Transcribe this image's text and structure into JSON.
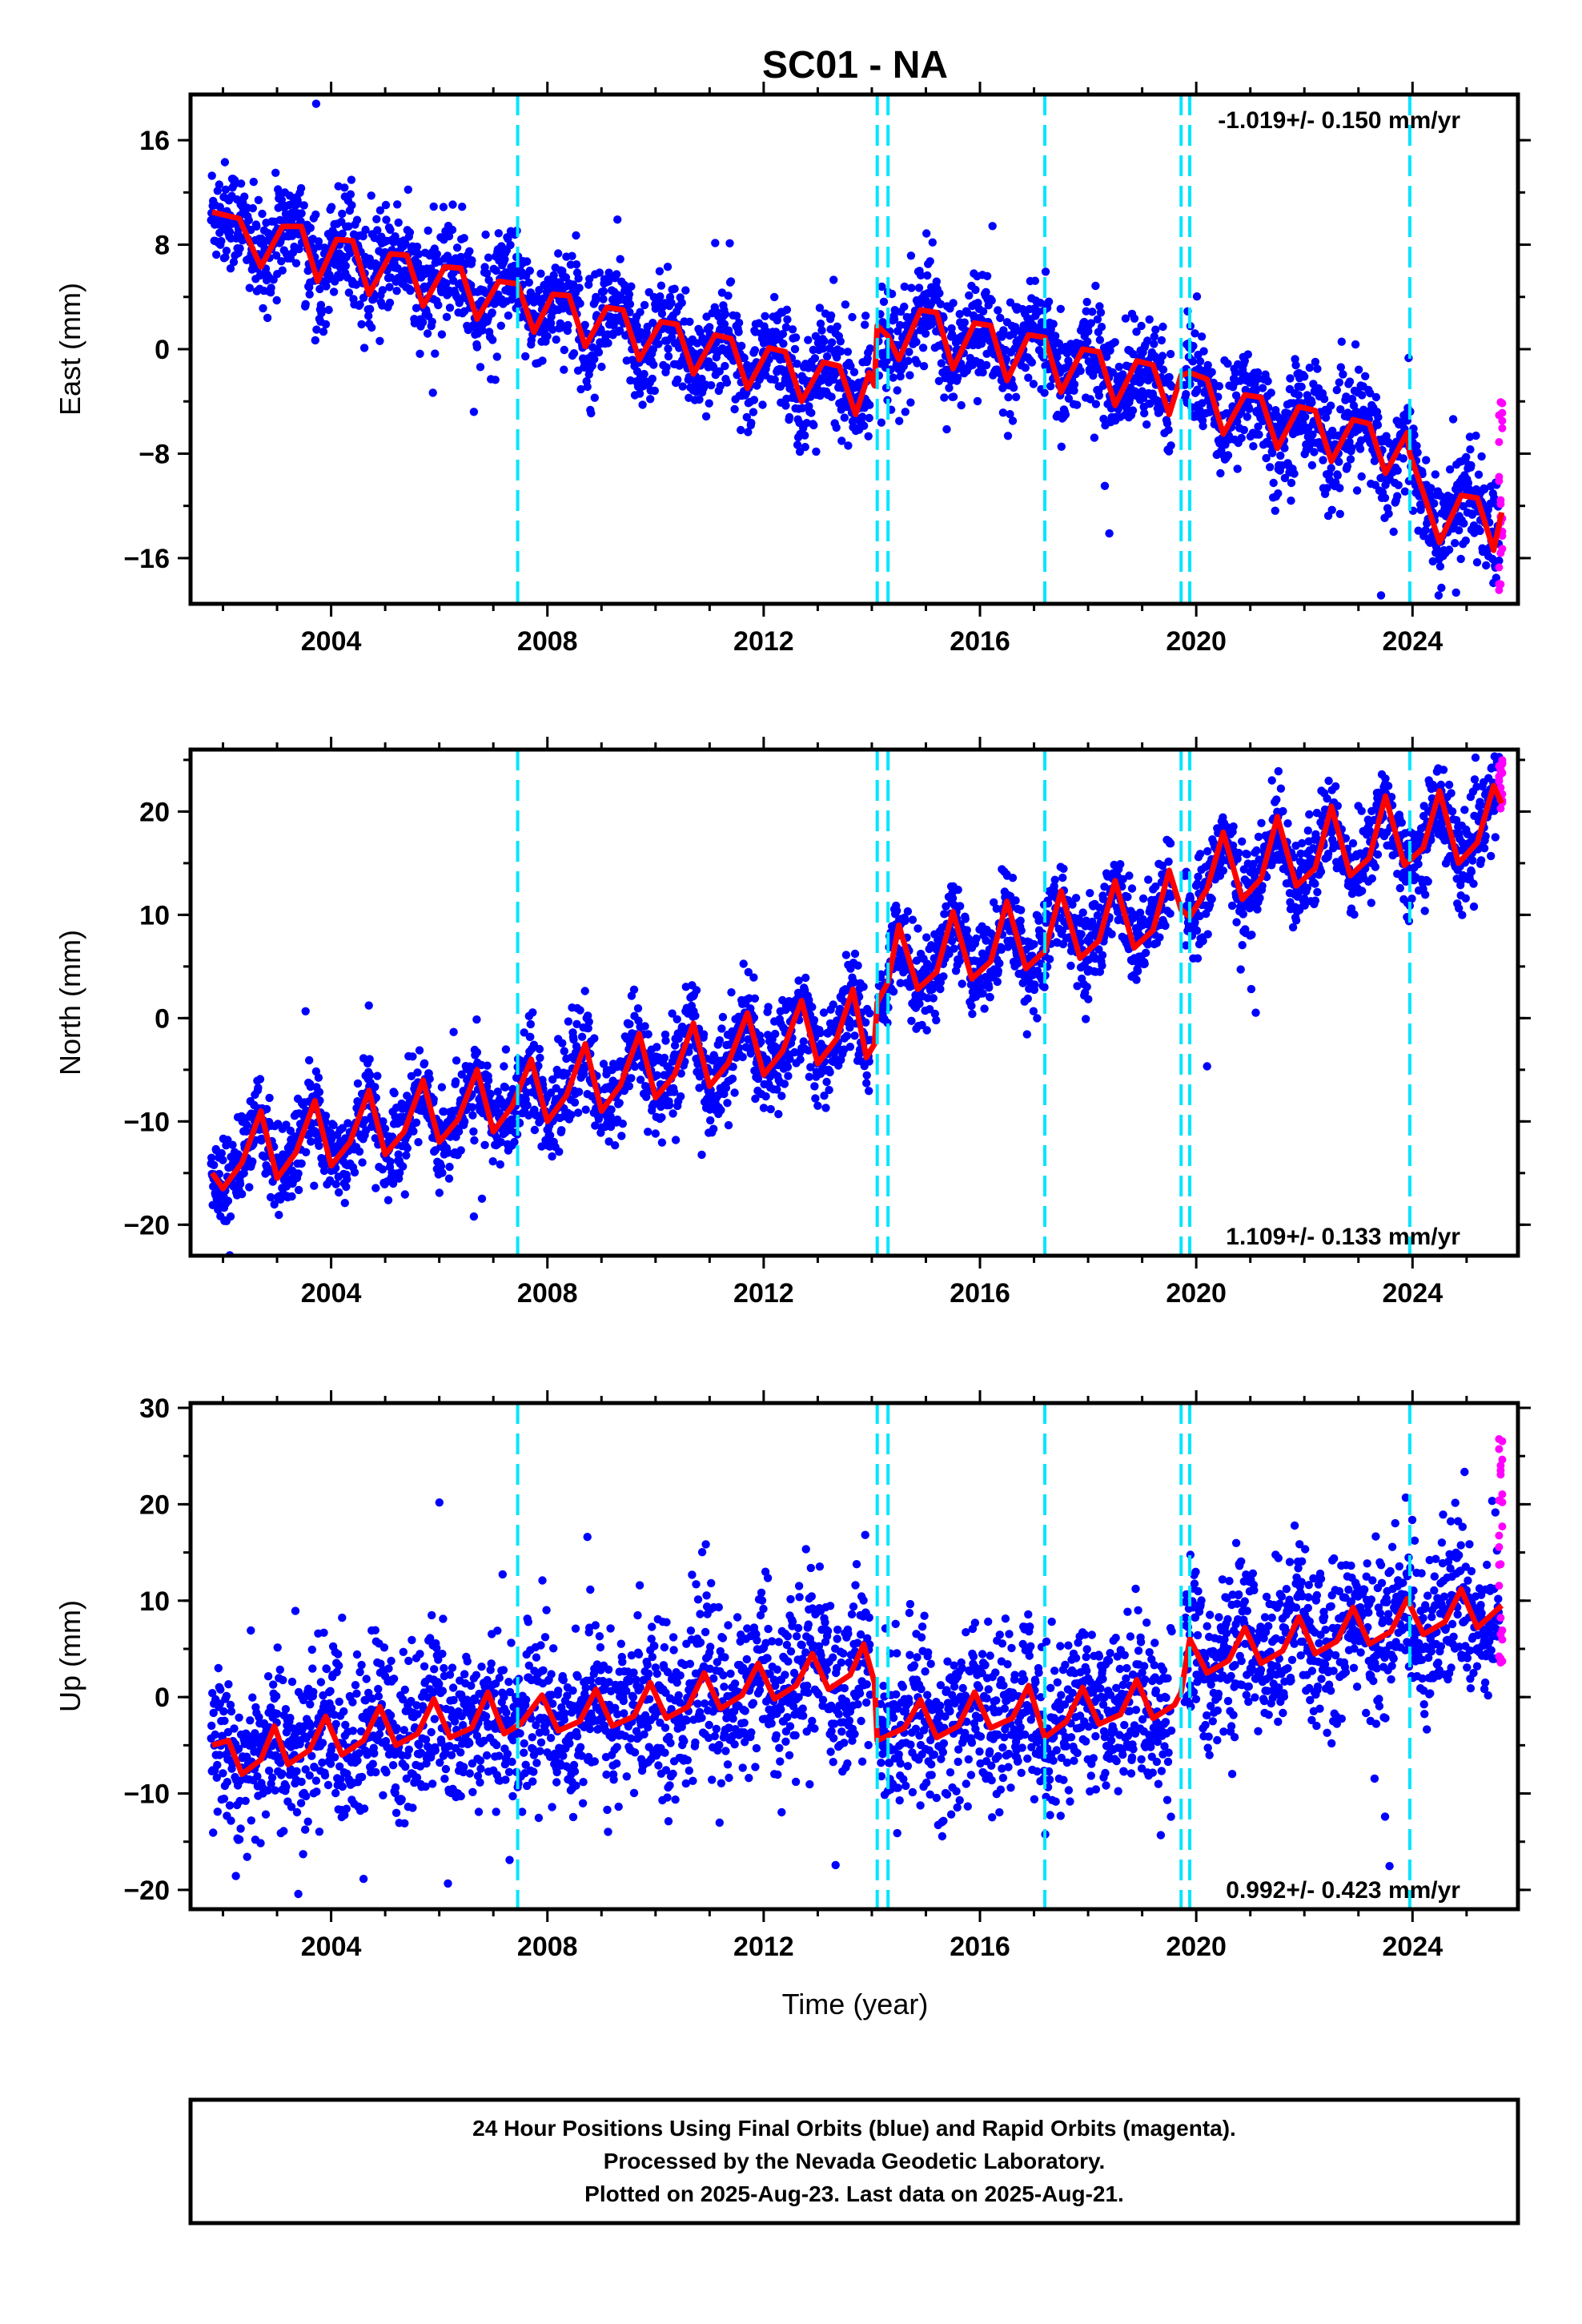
{
  "title": "SC01 - NA",
  "xlabel": "Time (year)",
  "colors": {
    "final": "#0000ff",
    "rapid": "#ff00ff",
    "model": "#ff0000",
    "offsets": "#00e5ff"
  },
  "footer": {
    "line1": "24 Hour Positions Using Final Orbits (blue) and Rapid Orbits (magenta).",
    "line2": "Processed by the Nevada Geodetic Laboratory.",
    "line3": "Plotted on 2025-Aug-23. Last data on 2025-Aug-21."
  },
  "chart_data": [
    {
      "type": "scatter",
      "ylabel": "East (mm)",
      "rate_text": "-1.019+/- 0.150 mm/yr",
      "rate_position": "top-right",
      "xlim": [
        2001.4,
        2025.95
      ],
      "ylim": [
        -19.5,
        19.5
      ],
      "xticks": [
        2004,
        2008,
        2012,
        2016,
        2020,
        2024
      ],
      "yticks": [
        -16,
        -8,
        0,
        8,
        16
      ],
      "ytick_labels": [
        "−16",
        "−8",
        "0",
        "8",
        "16"
      ],
      "offsets": [
        2007.45,
        2014.1,
        2014.3,
        2017.2,
        2019.72,
        2019.88,
        2023.95
      ],
      "model_points": [
        [
          2001.8,
          10.5
        ],
        [
          2002.3,
          10.0
        ],
        [
          2002.7,
          6.3
        ],
        [
          2003.1,
          9.4
        ],
        [
          2003.45,
          9.4
        ],
        [
          2003.75,
          5.2
        ],
        [
          2004.1,
          8.4
        ],
        [
          2004.4,
          8.3
        ],
        [
          2004.7,
          4.2
        ],
        [
          2005.1,
          7.3
        ],
        [
          2005.4,
          7.2
        ],
        [
          2005.7,
          3.3
        ],
        [
          2006.1,
          6.3
        ],
        [
          2006.4,
          6.2
        ],
        [
          2006.7,
          2.3
        ],
        [
          2007.1,
          5.2
        ],
        [
          2007.45,
          5.0
        ],
        [
          2007.75,
          1.3
        ],
        [
          2008.1,
          4.2
        ],
        [
          2008.4,
          4.1
        ],
        [
          2008.7,
          0.2
        ],
        [
          2009.1,
          3.2
        ],
        [
          2009.4,
          3.0
        ],
        [
          2009.7,
          -0.8
        ],
        [
          2010.1,
          2.1
        ],
        [
          2010.4,
          1.9
        ],
        [
          2010.7,
          -1.9
        ],
        [
          2011.1,
          1.1
        ],
        [
          2011.4,
          0.8
        ],
        [
          2011.7,
          -3.0
        ],
        [
          2012.1,
          0.1
        ],
        [
          2012.4,
          -0.2
        ],
        [
          2012.7,
          -4.0
        ],
        [
          2013.1,
          -1.0
        ],
        [
          2013.4,
          -1.3
        ],
        [
          2013.7,
          -5.0
        ],
        [
          2013.95,
          -1.8
        ],
        [
          2014.05,
          -2.8
        ],
        [
          2014.1,
          1.8
        ],
        [
          2014.3,
          1.0
        ],
        [
          2014.5,
          -0.8
        ],
        [
          2014.9,
          3.0
        ],
        [
          2015.2,
          2.8
        ],
        [
          2015.5,
          -1.5
        ],
        [
          2015.9,
          2.0
        ],
        [
          2016.2,
          1.8
        ],
        [
          2016.5,
          -2.4
        ],
        [
          2016.9,
          1.1
        ],
        [
          2017.2,
          0.9
        ],
        [
          2017.5,
          -3.3
        ],
        [
          2017.9,
          0.0
        ],
        [
          2018.2,
          -0.2
        ],
        [
          2018.5,
          -4.3
        ],
        [
          2018.9,
          -0.9
        ],
        [
          2019.2,
          -1.2
        ],
        [
          2019.5,
          -5.0
        ],
        [
          2019.72,
          -2.0
        ],
        [
          2019.88,
          -1.8
        ],
        [
          2020.2,
          -2.3
        ],
        [
          2020.5,
          -6.5
        ],
        [
          2020.9,
          -3.5
        ],
        [
          2021.2,
          -3.7
        ],
        [
          2021.5,
          -7.6
        ],
        [
          2021.9,
          -4.4
        ],
        [
          2022.2,
          -4.7
        ],
        [
          2022.5,
          -8.6
        ],
        [
          2022.9,
          -5.4
        ],
        [
          2023.2,
          -5.7
        ],
        [
          2023.5,
          -9.5
        ],
        [
          2023.9,
          -6.4
        ],
        [
          2023.95,
          -8.0
        ],
        [
          2024.2,
          -11.0
        ],
        [
          2024.5,
          -14.8
        ],
        [
          2024.9,
          -11.2
        ],
        [
          2025.2,
          -11.4
        ],
        [
          2025.5,
          -15.4
        ],
        [
          2025.65,
          -12.5
        ]
      ],
      "scatter_residual_spread": 2.0,
      "rapid_range": [
        -18.5,
        -3.5
      ]
    },
    {
      "type": "scatter",
      "ylabel": "North (mm)",
      "rate_text": "1.109+/- 0.133 mm/yr",
      "rate_position": "bottom-right",
      "xlim": [
        2001.4,
        2025.95
      ],
      "ylim": [
        -23,
        26
      ],
      "xticks": [
        2004,
        2008,
        2012,
        2016,
        2020,
        2024
      ],
      "yticks": [
        -20,
        -10,
        0,
        10,
        20
      ],
      "ytick_labels": [
        "−20",
        "−10",
        "0",
        "10",
        "20"
      ],
      "offsets": [
        2007.45,
        2014.1,
        2014.3,
        2017.2,
        2019.72,
        2019.88,
        2023.95
      ],
      "model_points": [
        [
          2001.8,
          -15.0
        ],
        [
          2002.0,
          -16.5
        ],
        [
          2002.35,
          -14.0
        ],
        [
          2002.7,
          -9.0
        ],
        [
          2003.0,
          -15.5
        ],
        [
          2003.35,
          -13.0
        ],
        [
          2003.7,
          -8.0
        ],
        [
          2004.0,
          -14.3
        ],
        [
          2004.35,
          -12.0
        ],
        [
          2004.7,
          -7.0
        ],
        [
          2005.0,
          -13.2
        ],
        [
          2005.35,
          -11.0
        ],
        [
          2005.7,
          -6.0
        ],
        [
          2006.0,
          -12.0
        ],
        [
          2006.35,
          -9.8
        ],
        [
          2006.7,
          -5.0
        ],
        [
          2007.0,
          -11.0
        ],
        [
          2007.35,
          -8.5
        ],
        [
          2007.7,
          -4.0
        ],
        [
          2008.0,
          -10.0
        ],
        [
          2008.35,
          -7.5
        ],
        [
          2008.7,
          -2.5
        ],
        [
          2009.0,
          -9.0
        ],
        [
          2009.35,
          -6.5
        ],
        [
          2009.7,
          -1.5
        ],
        [
          2010.0,
          -7.7
        ],
        [
          2010.35,
          -5.5
        ],
        [
          2010.7,
          -0.5
        ],
        [
          2011.0,
          -6.6
        ],
        [
          2011.35,
          -4.3
        ],
        [
          2011.7,
          0.5
        ],
        [
          2012.0,
          -5.5
        ],
        [
          2012.35,
          -3.2
        ],
        [
          2012.7,
          1.7
        ],
        [
          2013.0,
          -4.4
        ],
        [
          2013.35,
          -2.0
        ],
        [
          2013.65,
          2.8
        ],
        [
          2013.9,
          -3.8
        ],
        [
          2014.05,
          -2.5
        ],
        [
          2014.1,
          1.5
        ],
        [
          2014.3,
          3.5
        ],
        [
          2014.5,
          9.0
        ],
        [
          2014.85,
          2.8
        ],
        [
          2015.2,
          4.5
        ],
        [
          2015.5,
          10.3
        ],
        [
          2015.85,
          3.8
        ],
        [
          2016.2,
          5.5
        ],
        [
          2016.5,
          11.3
        ],
        [
          2016.85,
          4.8
        ],
        [
          2017.2,
          6.5
        ],
        [
          2017.5,
          12.3
        ],
        [
          2017.85,
          5.8
        ],
        [
          2018.2,
          7.5
        ],
        [
          2018.5,
          13.3
        ],
        [
          2018.85,
          6.8
        ],
        [
          2019.2,
          8.5
        ],
        [
          2019.5,
          14.3
        ],
        [
          2019.72,
          10.5
        ],
        [
          2019.88,
          9.8
        ],
        [
          2020.2,
          12.5
        ],
        [
          2020.5,
          18.0
        ],
        [
          2020.85,
          11.5
        ],
        [
          2021.2,
          13.5
        ],
        [
          2021.5,
          19.5
        ],
        [
          2021.85,
          12.8
        ],
        [
          2022.2,
          14.5
        ],
        [
          2022.5,
          20.5
        ],
        [
          2022.85,
          13.8
        ],
        [
          2023.2,
          15.5
        ],
        [
          2023.5,
          21.5
        ],
        [
          2023.85,
          14.8
        ],
        [
          2024.2,
          16.5
        ],
        [
          2024.5,
          22.0
        ],
        [
          2024.85,
          15.0
        ],
        [
          2025.2,
          17.0
        ],
        [
          2025.5,
          22.5
        ],
        [
          2025.65,
          20.8
        ]
      ],
      "scatter_residual_spread": 2.2,
      "rapid_range": [
        20.0,
        25.5
      ]
    },
    {
      "type": "scatter",
      "ylabel": "Up (mm)",
      "rate_text": "0.992+/- 0.423 mm/yr",
      "rate_position": "bottom-right",
      "xlim": [
        2001.4,
        2025.95
      ],
      "ylim": [
        -22,
        30.5
      ],
      "xticks": [
        2004,
        2008,
        2012,
        2016,
        2020,
        2024
      ],
      "yticks": [
        -20,
        -10,
        0,
        10,
        20,
        30
      ],
      "ytick_labels": [
        "−20",
        "−10",
        "0",
        "10",
        "20",
        "30"
      ],
      "offsets": [
        2007.45,
        2014.1,
        2014.3,
        2017.2,
        2019.72,
        2019.88,
        2023.95
      ],
      "model_points": [
        [
          2001.8,
          -5.0
        ],
        [
          2002.1,
          -4.5
        ],
        [
          2002.35,
          -8.0
        ],
        [
          2002.7,
          -6.5
        ],
        [
          2002.95,
          -3.0
        ],
        [
          2003.2,
          -7.0
        ],
        [
          2003.6,
          -5.5
        ],
        [
          2003.9,
          -2.0
        ],
        [
          2004.2,
          -6.0
        ],
        [
          2004.6,
          -4.5
        ],
        [
          2004.9,
          -1.0
        ],
        [
          2005.2,
          -5.0
        ],
        [
          2005.6,
          -3.8
        ],
        [
          2005.9,
          -0.2
        ],
        [
          2006.2,
          -4.2
        ],
        [
          2006.6,
          -3.2
        ],
        [
          2006.9,
          0.5
        ],
        [
          2007.2,
          -3.8
        ],
        [
          2007.5,
          -2.8
        ],
        [
          2007.9,
          0.2
        ],
        [
          2008.2,
          -3.5
        ],
        [
          2008.6,
          -2.5
        ],
        [
          2008.9,
          0.8
        ],
        [
          2009.2,
          -3.0
        ],
        [
          2009.6,
          -2.0
        ],
        [
          2009.9,
          1.5
        ],
        [
          2010.2,
          -2.2
        ],
        [
          2010.6,
          -1.0
        ],
        [
          2010.9,
          2.5
        ],
        [
          2011.2,
          -1.2
        ],
        [
          2011.6,
          0.2
        ],
        [
          2011.9,
          3.5
        ],
        [
          2012.2,
          -0.2
        ],
        [
          2012.6,
          1.2
        ],
        [
          2012.9,
          4.5
        ],
        [
          2013.2,
          0.8
        ],
        [
          2013.6,
          2.3
        ],
        [
          2013.85,
          5.5
        ],
        [
          2014.05,
          1.5
        ],
        [
          2014.1,
          -4.5
        ],
        [
          2014.3,
          -4.0
        ],
        [
          2014.6,
          -3.2
        ],
        [
          2014.9,
          -0.3
        ],
        [
          2015.2,
          -4.2
        ],
        [
          2015.6,
          -3.0
        ],
        [
          2015.9,
          0.5
        ],
        [
          2016.2,
          -3.2
        ],
        [
          2016.6,
          -2.2
        ],
        [
          2016.9,
          1.2
        ],
        [
          2017.2,
          -4.2
        ],
        [
          2017.6,
          -2.5
        ],
        [
          2017.9,
          1.0
        ],
        [
          2018.2,
          -2.8
        ],
        [
          2018.6,
          -1.8
        ],
        [
          2018.9,
          1.8
        ],
        [
          2019.2,
          -2.2
        ],
        [
          2019.6,
          -0.8
        ],
        [
          2019.72,
          0.5
        ],
        [
          2019.88,
          6.0
        ],
        [
          2020.2,
          2.5
        ],
        [
          2020.6,
          3.8
        ],
        [
          2020.9,
          7.2
        ],
        [
          2021.2,
          3.5
        ],
        [
          2021.6,
          4.8
        ],
        [
          2021.9,
          8.3
        ],
        [
          2022.2,
          4.5
        ],
        [
          2022.6,
          5.8
        ],
        [
          2022.9,
          9.3
        ],
        [
          2023.2,
          5.5
        ],
        [
          2023.6,
          6.8
        ],
        [
          2023.9,
          10.2
        ],
        [
          2024.2,
          6.5
        ],
        [
          2024.6,
          7.8
        ],
        [
          2024.9,
          11.2
        ],
        [
          2025.2,
          7.2
        ],
        [
          2025.65,
          9.5
        ]
      ],
      "scatter_residual_spread": 4.3,
      "rapid_range": [
        3.0,
        27.0
      ]
    }
  ]
}
